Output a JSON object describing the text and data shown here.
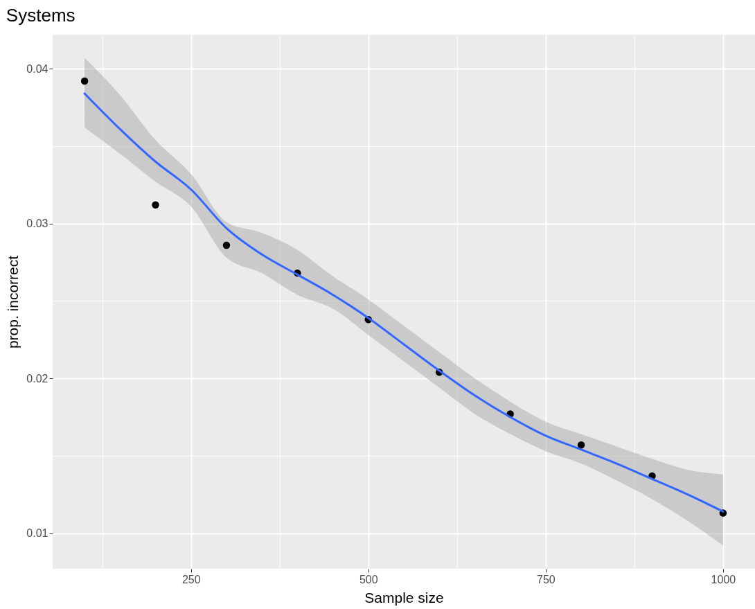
{
  "chart_data": {
    "type": "scatter",
    "title": "Systems",
    "xlabel": "Sample size",
    "ylabel": "prop. incorrect",
    "xlim": [
      55,
      1045
    ],
    "ylim": [
      0.0077,
      0.0422
    ],
    "xticks": [
      {
        "value": 125,
        "label": null
      },
      250,
      {
        "value": 375,
        "label": null
      },
      500,
      {
        "value": 625,
        "label": null
      },
      750,
      {
        "value": 875,
        "label": null
      },
      1000
    ],
    "yticks": [
      0.01,
      {
        "value": 0.015,
        "label": null
      },
      0.02,
      {
        "value": 0.025,
        "label": null
      },
      0.03,
      {
        "value": 0.035,
        "label": null
      },
      0.04
    ],
    "grid": true,
    "series": [
      {
        "marker": "circle",
        "color": "#000000",
        "x": [
          100,
          200,
          300,
          400,
          500,
          600,
          700,
          800,
          900,
          1000
        ],
        "values": [
          0.0392,
          0.0312,
          0.0286,
          0.0268,
          0.0238,
          0.0204,
          0.0177,
          0.0157,
          0.0137,
          0.0113
        ]
      },
      {
        "type": "line",
        "color": "#3366ff",
        "line_style": "solid",
        "x": [
          100,
          150,
          200,
          250,
          300,
          350,
          400,
          450,
          500,
          550,
          600,
          650,
          700,
          750,
          800,
          850,
          900,
          950,
          1000
        ],
        "values": [
          0.0384,
          0.0361,
          0.034,
          0.0322,
          0.0297,
          0.028,
          0.0267,
          0.0254,
          0.0239,
          0.0222,
          0.0205,
          0.0189,
          0.0175,
          0.0163,
          0.0154,
          0.0145,
          0.0135,
          0.0125,
          0.0114
        ],
        "lower": [
          0.0362,
          0.0345,
          0.0327,
          0.0311,
          0.0278,
          0.0268,
          0.0254,
          0.0245,
          0.0228,
          0.0211,
          0.0194,
          0.0177,
          0.0164,
          0.0153,
          0.0145,
          0.0134,
          0.0122,
          0.0108,
          0.0092
        ],
        "upper": [
          0.0407,
          0.0383,
          0.0354,
          0.0332,
          0.0301,
          0.0294,
          0.0283,
          0.0266,
          0.0251,
          0.0234,
          0.0217,
          0.02,
          0.0185,
          0.0172,
          0.0164,
          0.0156,
          0.0148,
          0.0141,
          0.0138
        ]
      }
    ]
  }
}
